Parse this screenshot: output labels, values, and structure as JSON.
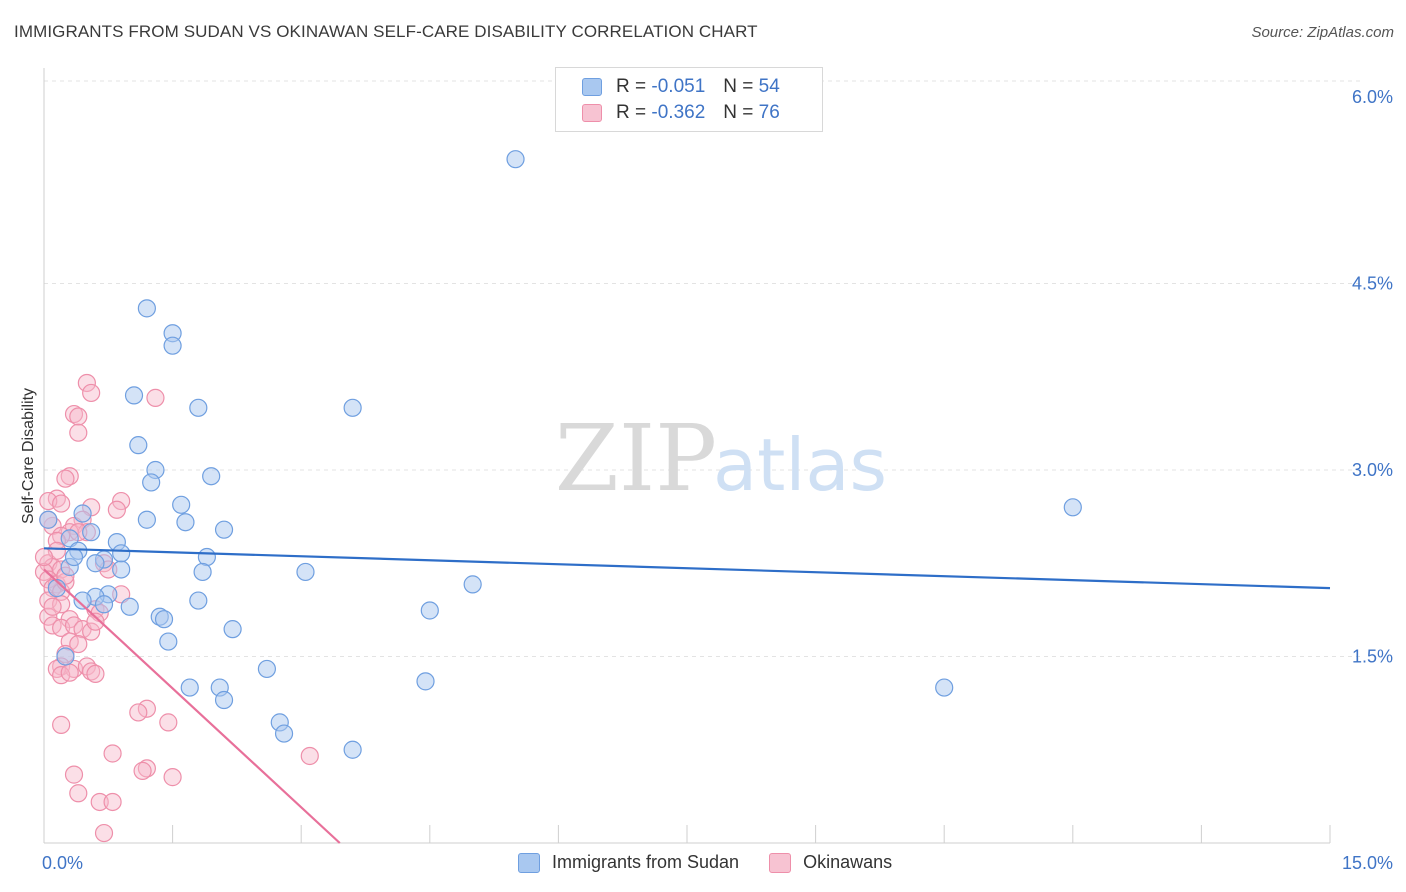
{
  "chart_data": {
    "type": "scatter",
    "title": "IMMIGRANTS FROM SUDAN VS OKINAWAN SELF-CARE DISABILITY CORRELATION CHART",
    "source": "Source: ZipAtlas.com",
    "ylabel": "Self-Care Disability",
    "xlim": [
      0,
      15
    ],
    "ylim": [
      0,
      6.0
    ],
    "x_tick_labels": [
      "0.0%",
      "15.0%"
    ],
    "y_ticks": [
      1.5,
      3.0,
      4.5,
      6.0
    ],
    "y_tick_labels": [
      "1.5%",
      "3.0%",
      "4.5%",
      "6.0%"
    ],
    "watermark": {
      "zip": "ZIP",
      "atlas": "atlas"
    },
    "colors": {
      "sudan_fill": "#a9c8f0",
      "sudan_stroke": "#6f9fe0",
      "sudan_line": "#2e6ec8",
      "okinawan_fill": "#f7b8ca",
      "okinawan_stroke": "#ee8faa",
      "okinawan_line": "#e8709a",
      "axis_text": "#3f74c6",
      "grid": "#e3e3e3"
    },
    "legend_top": [
      {
        "r_label": "R =",
        "r_value": "-0.051",
        "n_label": "N =",
        "n_value": "54"
      },
      {
        "r_label": "R =",
        "r_value": "-0.362",
        "n_label": "N =",
        "n_value": "76"
      }
    ],
    "series": [
      {
        "name": "Immigrants from Sudan",
        "trend": {
          "x": [
            0,
            15
          ],
          "y": [
            2.37,
            2.05
          ]
        },
        "points": [
          [
            5.5,
            5.5
          ],
          [
            1.2,
            4.3
          ],
          [
            1.5,
            4.1
          ],
          [
            1.5,
            4.0
          ],
          [
            1.05,
            3.6
          ],
          [
            1.8,
            3.5
          ],
          [
            3.6,
            3.5
          ],
          [
            1.1,
            3.2
          ],
          [
            1.3,
            3.0
          ],
          [
            1.95,
            2.95
          ],
          [
            1.25,
            2.9
          ],
          [
            1.6,
            2.72
          ],
          [
            0.45,
            2.65
          ],
          [
            1.2,
            2.6
          ],
          [
            1.65,
            2.58
          ],
          [
            2.1,
            2.52
          ],
          [
            0.55,
            2.5
          ],
          [
            0.3,
            2.45
          ],
          [
            0.85,
            2.42
          ],
          [
            0.4,
            2.35
          ],
          [
            1.9,
            2.3
          ],
          [
            0.7,
            2.28
          ],
          [
            0.6,
            2.25
          ],
          [
            0.3,
            2.22
          ],
          [
            0.9,
            2.2
          ],
          [
            1.85,
            2.18
          ],
          [
            3.05,
            2.18
          ],
          [
            5.0,
            2.08
          ],
          [
            0.15,
            2.05
          ],
          [
            0.75,
            2.0
          ],
          [
            0.6,
            1.98
          ],
          [
            0.45,
            1.95
          ],
          [
            1.8,
            1.95
          ],
          [
            1.0,
            1.9
          ],
          [
            4.5,
            1.87
          ],
          [
            1.35,
            1.82
          ],
          [
            1.4,
            1.8
          ],
          [
            2.2,
            1.72
          ],
          [
            1.45,
            1.62
          ],
          [
            0.25,
            1.5
          ],
          [
            2.6,
            1.4
          ],
          [
            4.45,
            1.3
          ],
          [
            1.7,
            1.25
          ],
          [
            2.05,
            1.25
          ],
          [
            10.5,
            1.25
          ],
          [
            2.1,
            1.15
          ],
          [
            2.75,
            0.97
          ],
          [
            2.8,
            0.88
          ],
          [
            3.6,
            0.75
          ],
          [
            12.0,
            2.7
          ],
          [
            0.05,
            2.6
          ],
          [
            0.35,
            2.3
          ],
          [
            0.7,
            1.92
          ],
          [
            0.9,
            2.33
          ]
        ]
      },
      {
        "name": "Okinawans",
        "trend": {
          "x": [
            0,
            3.45
          ],
          "y": [
            2.2,
            0.0
          ]
        },
        "points": [
          [
            0.5,
            3.7
          ],
          [
            0.55,
            3.62
          ],
          [
            1.3,
            3.58
          ],
          [
            0.35,
            3.45
          ],
          [
            0.4,
            3.43
          ],
          [
            0.4,
            3.3
          ],
          [
            0.3,
            2.95
          ],
          [
            0.25,
            2.93
          ],
          [
            0.15,
            2.77
          ],
          [
            0.05,
            2.75
          ],
          [
            0.2,
            2.73
          ],
          [
            0.9,
            2.75
          ],
          [
            0.55,
            2.7
          ],
          [
            0.85,
            2.68
          ],
          [
            0.45,
            2.6
          ],
          [
            0.35,
            2.55
          ],
          [
            0.1,
            2.55
          ],
          [
            0.3,
            2.5
          ],
          [
            0.2,
            2.47
          ],
          [
            0.5,
            2.5
          ],
          [
            0.15,
            2.43
          ],
          [
            0.05,
            2.25
          ],
          [
            0.1,
            2.22
          ],
          [
            0.2,
            2.2
          ],
          [
            0.7,
            2.25
          ],
          [
            0.75,
            2.2
          ],
          [
            0.0,
            2.18
          ],
          [
            0.05,
            2.12
          ],
          [
            0.15,
            2.08
          ],
          [
            0.1,
            2.05
          ],
          [
            0.2,
            2.02
          ],
          [
            0.25,
            2.1
          ],
          [
            0.9,
            2.0
          ],
          [
            0.05,
            1.95
          ],
          [
            0.2,
            1.92
          ],
          [
            0.6,
            1.88
          ],
          [
            0.65,
            1.85
          ],
          [
            0.05,
            1.82
          ],
          [
            0.3,
            1.8
          ],
          [
            0.1,
            1.75
          ],
          [
            0.2,
            1.73
          ],
          [
            0.35,
            1.75
          ],
          [
            0.45,
            1.72
          ],
          [
            0.55,
            1.7
          ],
          [
            0.3,
            1.62
          ],
          [
            0.4,
            1.6
          ],
          [
            0.25,
            1.52
          ],
          [
            0.2,
            1.42
          ],
          [
            0.15,
            1.4
          ],
          [
            0.35,
            1.4
          ],
          [
            0.5,
            1.42
          ],
          [
            0.55,
            1.38
          ],
          [
            0.6,
            1.36
          ],
          [
            0.2,
            1.35
          ],
          [
            0.3,
            1.37
          ],
          [
            1.2,
            1.08
          ],
          [
            1.1,
            1.05
          ],
          [
            1.45,
            0.97
          ],
          [
            0.2,
            0.95
          ],
          [
            0.8,
            0.72
          ],
          [
            3.1,
            0.7
          ],
          [
            1.2,
            0.6
          ],
          [
            1.15,
            0.58
          ],
          [
            0.35,
            0.55
          ],
          [
            1.5,
            0.53
          ],
          [
            0.4,
            0.4
          ],
          [
            0.65,
            0.33
          ],
          [
            0.8,
            0.33
          ],
          [
            0.7,
            0.08
          ],
          [
            0.05,
            2.6
          ],
          [
            0.15,
            2.35
          ],
          [
            0.25,
            2.15
          ],
          [
            0.4,
            2.5
          ],
          [
            0.1,
            1.9
          ],
          [
            0.6,
            1.78
          ],
          [
            0.0,
            2.3
          ]
        ]
      }
    ]
  }
}
